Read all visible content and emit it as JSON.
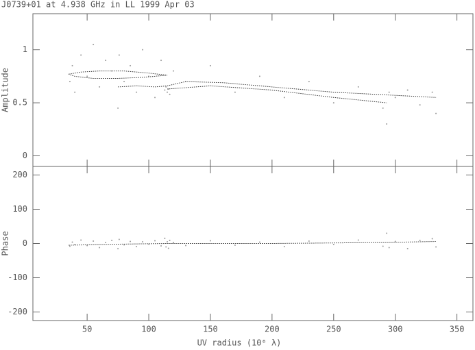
{
  "chart_data": [
    {
      "type": "scatter",
      "title": "J0739+01 at 4.938 GHz in LL  1999 Apr 03",
      "ylabel": "Amplitude",
      "xlim": [
        6,
        363
      ],
      "ylim": [
        -0.1,
        1.34
      ],
      "yticks": [
        0,
        0.5,
        1
      ],
      "series": [
        {
          "mode": "markers",
          "color": "#9a9a9a",
          "x": [
            36,
            38,
            40,
            45,
            50,
            55,
            60,
            65,
            70,
            75,
            76,
            80,
            85,
            90,
            95,
            100,
            105,
            110,
            113,
            114,
            115,
            116,
            117,
            120,
            130,
            150,
            170,
            190,
            210,
            230,
            250,
            270,
            290,
            293,
            295,
            300,
            310,
            320,
            330,
            333
          ],
          "values": [
            0.7,
            0.85,
            0.6,
            0.95,
            0.75,
            1.05,
            0.65,
            0.9,
            0.8,
            0.45,
            0.95,
            0.7,
            0.85,
            0.6,
            1.0,
            0.75,
            0.55,
            0.9,
            0.62,
            0.65,
            0.6,
            0.63,
            0.58,
            0.8,
            0.7,
            0.85,
            0.6,
            0.75,
            0.55,
            0.7,
            0.5,
            0.65,
            0.45,
            0.3,
            0.6,
            0.55,
            0.62,
            0.48,
            0.6,
            0.4
          ]
        },
        {
          "mode": "line",
          "color": "#333333",
          "x": [
            35,
            45,
            60,
            80,
            100,
            115,
            95,
            75,
            55,
            40,
            35,
            null,
            75,
            90,
            105,
            115,
            130,
            160,
            200,
            250,
            300,
            333,
            null,
            115,
            150,
            200,
            250,
            293
          ],
          "values": [
            0.77,
            0.79,
            0.8,
            0.8,
            0.78,
            0.76,
            0.74,
            0.73,
            0.73,
            0.75,
            0.77,
            null,
            0.65,
            0.66,
            0.65,
            0.66,
            0.7,
            0.69,
            0.65,
            0.6,
            0.57,
            0.55,
            null,
            0.63,
            0.66,
            0.62,
            0.55,
            0.5
          ]
        }
      ]
    },
    {
      "type": "scatter",
      "ylabel": "Phase",
      "xlabel": "UV radius  (10⁶ λ)",
      "xlim": [
        6,
        363
      ],
      "ylim": [
        -225,
        225
      ],
      "yticks": [
        -200,
        -100,
        0,
        100,
        200
      ],
      "xticks": [
        50,
        100,
        150,
        200,
        250,
        300,
        350
      ],
      "series": [
        {
          "mode": "markers",
          "color": "#9a9a9a",
          "x": [
            36,
            38,
            40,
            45,
            50,
            55,
            60,
            65,
            70,
            75,
            76,
            80,
            85,
            90,
            95,
            100,
            105,
            110,
            113,
            114,
            115,
            116,
            117,
            120,
            130,
            150,
            170,
            190,
            210,
            230,
            250,
            270,
            290,
            293,
            295,
            300,
            310,
            320,
            330,
            333
          ],
          "values": [
            -8,
            4,
            -3,
            10,
            -6,
            7,
            -12,
            3,
            9,
            -15,
            12,
            -4,
            6,
            -9,
            5,
            -2,
            8,
            -7,
            15,
            -10,
            5,
            -14,
            9,
            3,
            -6,
            8,
            -5,
            4,
            -9,
            7,
            -3,
            10,
            -8,
            30,
            -12,
            6,
            -15,
            9,
            14,
            -10
          ]
        },
        {
          "mode": "line",
          "color": "#333333",
          "x": [
            35,
            75,
            115,
            200,
            293,
            333
          ],
          "values": [
            -5,
            -2,
            0,
            0,
            3,
            6
          ]
        }
      ]
    }
  ]
}
